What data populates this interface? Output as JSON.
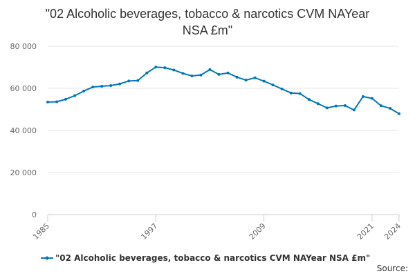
{
  "chart_data": {
    "type": "line",
    "title_lines": [
      "\"02 Alcoholic beverages, tobacco & narcotics CVM NAYear",
      "NSA £m\""
    ],
    "xlabel": "",
    "ylabel": "",
    "x_range": [
      1985,
      2024
    ],
    "ylim": [
      0,
      80000
    ],
    "y_ticks": [
      0,
      20000,
      40000,
      60000,
      80000
    ],
    "y_tick_labels": [
      "0",
      "20 000",
      "40 000",
      "60 000",
      "80 000"
    ],
    "x_tick_labels": [
      "1985",
      "1997",
      "2009",
      "2021",
      "2024"
    ],
    "x_tick_values": [
      1985,
      1997,
      2009,
      2021,
      2024
    ],
    "grid": true,
    "legend_position": "bottom",
    "series": [
      {
        "name": "\"02 Alcoholic beverages, tobacco & narcotics CVM NAYear NSA £m\"",
        "color": "#0077BB",
        "x": [
          1985,
          1986,
          1987,
          1988,
          1989,
          1990,
          1991,
          1992,
          1993,
          1994,
          1995,
          1996,
          1997,
          1998,
          1999,
          2000,
          2001,
          2002,
          2003,
          2004,
          2005,
          2006,
          2007,
          2008,
          2009,
          2010,
          2011,
          2012,
          2013,
          2014,
          2015,
          2016,
          2017,
          2018,
          2019,
          2020,
          2021,
          2022,
          2023,
          2024
        ],
        "values": [
          53500,
          53600,
          54800,
          56500,
          58700,
          60600,
          61000,
          61300,
          62100,
          63500,
          63700,
          67300,
          70100,
          69800,
          68700,
          67100,
          65900,
          66300,
          68900,
          66600,
          67300,
          65300,
          63900,
          65000,
          63400,
          61600,
          59700,
          57800,
          57500,
          54700,
          52700,
          50700,
          51600,
          51800,
          49700,
          56100,
          55200,
          51700,
          50500,
          47900
        ]
      }
    ]
  },
  "credits": {
    "text": "Source:"
  }
}
